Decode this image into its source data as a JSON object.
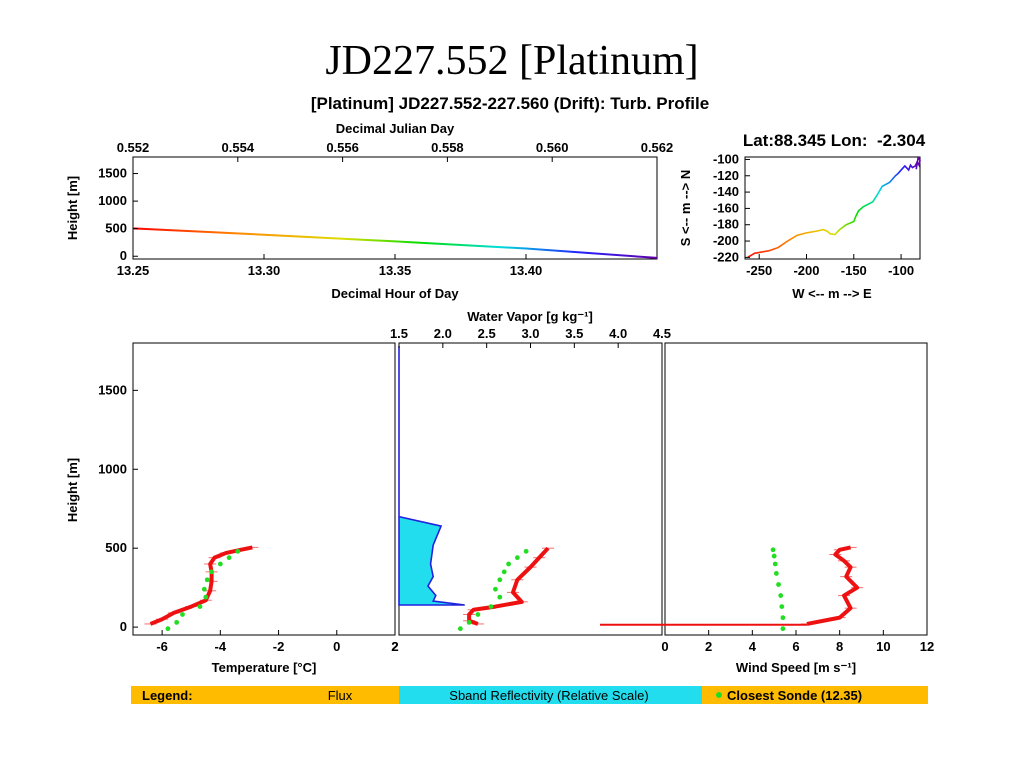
{
  "slide_title": "JD227.552 [Platinum]",
  "figure_title": "[Platinum] JD227.552-227.560 (Drift): Turb. Profile",
  "colors": {
    "flux": "#ee1111",
    "sband": "#22ddee",
    "sband_line": "#2222dd",
    "sonde": "#22dd22",
    "legend_bg": "#ffbb00",
    "legend_sband_bg": "#22ddee",
    "legend_sband_text": "#1111cc"
  },
  "chart_data": [
    {
      "id": "track_time",
      "type": "line",
      "title": "",
      "xlabel": "Decimal Hour of Day",
      "ylabel": "Height [m]",
      "x2label": "Decimal Julian Day",
      "xlim": [
        13.25,
        13.45
      ],
      "ylim": [
        -50,
        1800
      ],
      "xticks": [
        "13.25",
        "13.30",
        "13.35",
        "13.40"
      ],
      "yticks": [
        "0",
        "500",
        "1000",
        "1500"
      ],
      "x2ticks": [
        "0.552",
        "0.554",
        "0.556",
        "0.558",
        "0.560",
        "0.562"
      ],
      "color_scale": "rainbow by time (red to violet)",
      "x": [
        13.25,
        13.3,
        13.35,
        13.4,
        13.45
      ],
      "y": [
        505,
        390,
        270,
        140,
        -30
      ]
    },
    {
      "id": "track_map",
      "type": "line",
      "title": "Lat:88.345 Lon:  -2.304",
      "xlabel": "W <-- m --> E",
      "ylabel": "S <-- m --> N",
      "xlim": [
        -265,
        -80
      ],
      "ylim": [
        -222,
        -97
      ],
      "xticks": [
        "-250",
        "-200",
        "-150",
        "-100"
      ],
      "yticks": [
        "-100",
        "-120",
        "-140",
        "-160",
        "-180",
        "-200",
        "-220"
      ],
      "color_scale": "rainbow by time (red to violet)",
      "x": [
        -262,
        -255,
        -240,
        -230,
        -220,
        -210,
        -200,
        -190,
        -182,
        -178,
        -175,
        -170,
        -165,
        -158,
        -150,
        -148,
        -145,
        -140,
        -130,
        -125,
        -120,
        -112,
        -106,
        -103,
        -100,
        -96,
        -92,
        -90,
        -88,
        -85,
        -83,
        -81,
        -80,
        -82,
        -84
      ],
      "y": [
        -220,
        -215,
        -212,
        -208,
        -200,
        -193,
        -190,
        -188,
        -186,
        -188,
        -191,
        -192,
        -186,
        -180,
        -176,
        -170,
        -163,
        -158,
        -152,
        -143,
        -133,
        -128,
        -120,
        -117,
        -113,
        -108,
        -113,
        -107,
        -110,
        -108,
        -103,
        -107,
        -101,
        -98,
        -112
      ]
    },
    {
      "id": "temperature",
      "type": "scatter",
      "xlabel": "Temperature [°C]",
      "ylabel": "Height [m]",
      "xlim": [
        -7,
        2
      ],
      "ylim": [
        -50,
        1800
      ],
      "xticks": [
        "-6",
        "-4",
        "-2",
        "0",
        "2"
      ],
      "yticks": [
        "0",
        "500",
        "1000",
        "1500"
      ],
      "series": [
        {
          "role": "flux",
          "x": [
            -6.4,
            -6.0,
            -5.6,
            -5.0,
            -4.5,
            -4.35,
            -4.3,
            -4.3,
            -4.35,
            -4.2,
            -3.8,
            -3.3,
            -2.9
          ],
          "y": [
            20,
            50,
            90,
            130,
            170,
            230,
            290,
            350,
            400,
            440,
            470,
            490,
            505
          ]
        },
        {
          "role": "sonde",
          "x": [
            -5.8,
            -5.5,
            -5.3,
            -4.7,
            -4.5,
            -4.55,
            -4.45,
            -4.3,
            -4.0,
            -3.7,
            -3.4
          ],
          "y": [
            -10,
            30,
            80,
            130,
            190,
            240,
            300,
            350,
            400,
            440,
            480
          ]
        }
      ]
    },
    {
      "id": "water_vapor",
      "type": "line",
      "xlabel": "",
      "x2label": "Water Vapor [g kg⁻¹]",
      "xlim": [
        1.5,
        4.5
      ],
      "ylim": [
        -50,
        1800
      ],
      "x2ticks": [
        "1.5",
        "2.0",
        "2.5",
        "3.0",
        "3.5",
        "4.0",
        "4.5"
      ],
      "xticks": [
        "2"
      ],
      "sband_reflectivity": {
        "x": [
          0,
          0,
          0.16,
          0.13,
          0.12,
          0.13,
          0.11,
          0.14,
          0.13,
          0.25,
          0
        ],
        "y": [
          1780,
          700,
          640,
          520,
          400,
          320,
          260,
          200,
          165,
          140,
          140
        ]
      },
      "series": [
        {
          "role": "flux",
          "x": [
            2.4,
            2.3,
            2.3,
            2.35,
            2.6,
            2.9,
            2.8,
            2.85,
            3.0,
            3.1,
            3.2
          ],
          "y": [
            20,
            40,
            80,
            110,
            130,
            160,
            220,
            300,
            380,
            440,
            500
          ]
        },
        {
          "role": "sonde",
          "x": [
            2.2,
            2.3,
            2.4,
            2.55,
            2.65,
            2.6,
            2.65,
            2.7,
            2.75,
            2.85,
            2.95
          ],
          "y": [
            -10,
            30,
            80,
            130,
            190,
            240,
            300,
            350,
            400,
            440,
            480
          ]
        }
      ]
    },
    {
      "id": "wind_speed",
      "type": "scatter",
      "xlabel": "Wind Speed [m s⁻¹]",
      "ylabel": "",
      "xlim": [
        0,
        12
      ],
      "ylim": [
        -50,
        1800
      ],
      "xticks": [
        "0",
        "2",
        "4",
        "6",
        "8",
        "10",
        "12"
      ],
      "series": [
        {
          "role": "flux",
          "x": [
            6.5,
            8.0,
            8.5,
            8.2,
            8.8,
            8.3,
            8.5,
            8.2,
            7.8,
            8.0,
            8.5
          ],
          "y": [
            20,
            60,
            120,
            200,
            250,
            320,
            380,
            420,
            460,
            490,
            505
          ]
        },
        {
          "role": "sonde",
          "x": [
            5.4,
            5.4,
            5.35,
            5.3,
            5.2,
            5.1,
            5.05,
            5.0,
            4.95
          ],
          "y": [
            -10,
            60,
            130,
            200,
            270,
            340,
            400,
            450,
            490
          ]
        }
      ]
    }
  ],
  "legend": {
    "label": "Legend:",
    "flux": "Flux",
    "sband": "Sband Reflectivity (Relative Scale)",
    "sonde": "Closest Sonde (12.35)"
  }
}
